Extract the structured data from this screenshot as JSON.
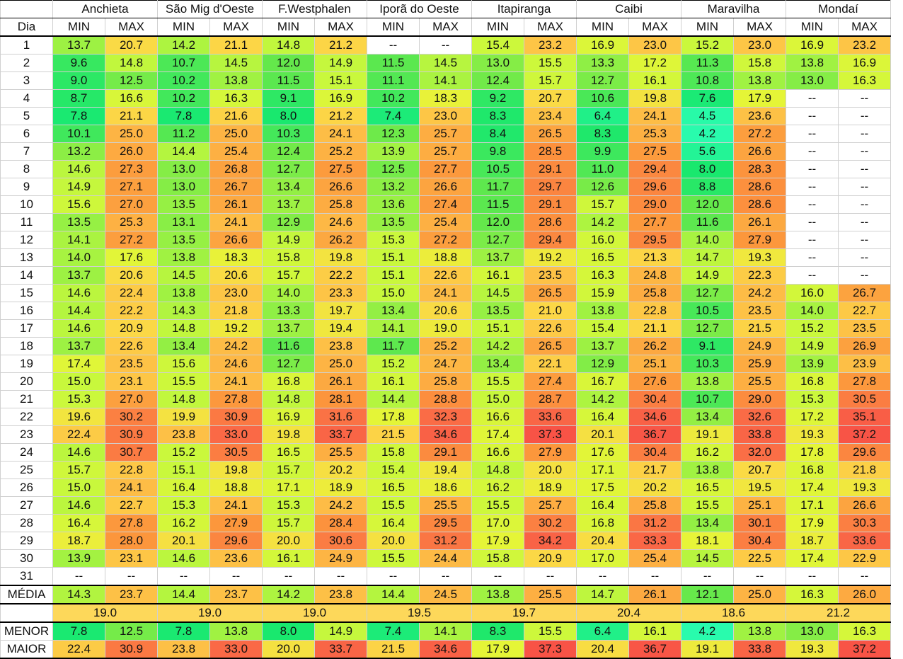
{
  "header": {
    "dia_label": "Dia",
    "min_label": "MIN",
    "max_label": "MAX"
  },
  "stations": [
    "Anchieta",
    "São Mig d'Oeste",
    "F.Westphalen",
    "Iporã do Oeste",
    "Itapiranga",
    "Caibi",
    "Maravilha",
    "Mondaí"
  ],
  "rows": [
    {
      "dia": "1",
      "v": [
        "13.7",
        "20.7",
        "14.2",
        "21.1",
        "14.8",
        "21.2",
        "--",
        "--",
        "15.4",
        "23.2",
        "16.9",
        "23.0",
        "15.2",
        "23.0",
        "16.9",
        "23.2"
      ]
    },
    {
      "dia": "2",
      "v": [
        "9.6",
        "14.8",
        "10.7",
        "14.5",
        "12.0",
        "14.9",
        "11.5",
        "14.5",
        "13.0",
        "15.5",
        "13.3",
        "17.2",
        "11.3",
        "15.8",
        "13.8",
        "16.9"
      ]
    },
    {
      "dia": "3",
      "v": [
        "9.0",
        "12.5",
        "10.2",
        "13.8",
        "11.5",
        "15.1",
        "11.1",
        "14.1",
        "12.4",
        "15.7",
        "12.7",
        "16.1",
        "10.8",
        "13.8",
        "13.0",
        "16.3"
      ]
    },
    {
      "dia": "4",
      "v": [
        "8.7",
        "16.6",
        "10.2",
        "16.3",
        "9.1",
        "16.9",
        "10.2",
        "18.3",
        "9.2",
        "20.7",
        "10.6",
        "19.8",
        "7.6",
        "17.9",
        "--",
        "--"
      ]
    },
    {
      "dia": "5",
      "v": [
        "7.8",
        "21.1",
        "7.8",
        "21.6",
        "8.0",
        "21.2",
        "7.4",
        "23.0",
        "8.3",
        "23.4",
        "6.4",
        "24.1",
        "4.5",
        "23.6",
        "--",
        "--"
      ]
    },
    {
      "dia": "6",
      "v": [
        "10.1",
        "25.0",
        "11.2",
        "25.0",
        "10.3",
        "24.1",
        "12.3",
        "25.7",
        "8.4",
        "26.5",
        "8.3",
        "25.3",
        "4.2",
        "27.2",
        "--",
        "--"
      ]
    },
    {
      "dia": "7",
      "v": [
        "13.2",
        "26.0",
        "14.4",
        "25.4",
        "12.4",
        "25.2",
        "13.9",
        "25.7",
        "9.8",
        "28.5",
        "9.9",
        "27.5",
        "5.6",
        "26.6",
        "--",
        "--"
      ]
    },
    {
      "dia": "8",
      "v": [
        "14.6",
        "27.3",
        "13.0",
        "26.8",
        "12.7",
        "27.5",
        "12.5",
        "27.7",
        "10.5",
        "29.1",
        "11.0",
        "29.4",
        "8.0",
        "28.3",
        "--",
        "--"
      ]
    },
    {
      "dia": "9",
      "v": [
        "14.9",
        "27.1",
        "13.0",
        "26.7",
        "13.4",
        "26.6",
        "13.2",
        "26.6",
        "11.7",
        "29.7",
        "12.6",
        "29.6",
        "8.8",
        "28.6",
        "--",
        "--"
      ]
    },
    {
      "dia": "10",
      "v": [
        "15.6",
        "27.0",
        "13.5",
        "26.1",
        "13.7",
        "25.8",
        "13.6",
        "27.4",
        "11.5",
        "29.1",
        "15.7",
        "29.0",
        "12.0",
        "28.6",
        "--",
        "--"
      ]
    },
    {
      "dia": "11",
      "v": [
        "13.5",
        "25.3",
        "13.1",
        "24.1",
        "12.9",
        "24.6",
        "13.5",
        "25.4",
        "12.0",
        "28.6",
        "14.2",
        "27.7",
        "11.6",
        "26.1",
        "--",
        "--"
      ]
    },
    {
      "dia": "12",
      "v": [
        "14.1",
        "27.2",
        "13.5",
        "26.6",
        "14.9",
        "26.2",
        "15.3",
        "27.2",
        "12.7",
        "29.4",
        "16.0",
        "29.5",
        "14.0",
        "27.9",
        "--",
        "--"
      ]
    },
    {
      "dia": "13",
      "v": [
        "14.0",
        "17.6",
        "13.8",
        "18.3",
        "15.8",
        "19.8",
        "15.1",
        "18.8",
        "13.7",
        "19.2",
        "16.5",
        "21.3",
        "14.7",
        "19.3",
        "--",
        "--"
      ]
    },
    {
      "dia": "14",
      "v": [
        "13.7",
        "20.6",
        "14.5",
        "20.6",
        "15.7",
        "22.2",
        "15.1",
        "22.6",
        "16.1",
        "23.5",
        "16.3",
        "24.8",
        "14.9",
        "22.3",
        "--",
        "--"
      ]
    },
    {
      "dia": "15",
      "v": [
        "14.6",
        "22.4",
        "13.8",
        "23.0",
        "14.0",
        "23.3",
        "15.0",
        "24.1",
        "14.5",
        "26.5",
        "15.9",
        "25.8",
        "12.7",
        "24.2",
        "16.0",
        "26.7"
      ]
    },
    {
      "dia": "16",
      "v": [
        "14.4",
        "22.2",
        "14.3",
        "21.8",
        "13.3",
        "19.7",
        "13.4",
        "20.6",
        "13.5",
        "21.0",
        "13.8",
        "22.8",
        "10.5",
        "23.5",
        "14.0",
        "22.7"
      ]
    },
    {
      "dia": "17",
      "v": [
        "14.6",
        "20.9",
        "14.8",
        "19.2",
        "13.7",
        "19.4",
        "14.1",
        "19.0",
        "15.1",
        "22.6",
        "15.4",
        "21.1",
        "12.7",
        "21.5",
        "15.2",
        "23.5"
      ]
    },
    {
      "dia": "18",
      "v": [
        "13.7",
        "22.6",
        "13.4",
        "24.2",
        "11.6",
        "23.8",
        "11.7",
        "25.2",
        "14.2",
        "26.5",
        "13.7",
        "26.2",
        "9.1",
        "24.9",
        "14.9",
        "26.9"
      ]
    },
    {
      "dia": "19",
      "v": [
        "17.4",
        "23.5",
        "15.6",
        "24.6",
        "12.7",
        "25.0",
        "15.2",
        "24.7",
        "13.4",
        "22.1",
        "12.9",
        "25.1",
        "10.3",
        "25.9",
        "13.9",
        "23.9"
      ]
    },
    {
      "dia": "20",
      "v": [
        "15.0",
        "23.1",
        "15.5",
        "24.1",
        "16.8",
        "26.1",
        "16.1",
        "25.8",
        "15.5",
        "27.4",
        "16.7",
        "27.6",
        "13.8",
        "25.5",
        "16.8",
        "27.8"
      ]
    },
    {
      "dia": "21",
      "v": [
        "15.3",
        "27.0",
        "14.8",
        "27.8",
        "14.8",
        "28.1",
        "14.4",
        "28.8",
        "15.0",
        "28.7",
        "14.2",
        "30.4",
        "10.7",
        "29.0",
        "15.3",
        "30.5"
      ]
    },
    {
      "dia": "22",
      "v": [
        "19.6",
        "30.2",
        "19.9",
        "30.9",
        "16.9",
        "31.6",
        "17.8",
        "32.3",
        "16.6",
        "33.6",
        "16.4",
        "34.6",
        "13.4",
        "32.6",
        "17.2",
        "35.1"
      ]
    },
    {
      "dia": "23",
      "v": [
        "22.4",
        "30.9",
        "23.8",
        "33.0",
        "19.8",
        "33.7",
        "21.5",
        "34.6",
        "17.4",
        "37.3",
        "20.1",
        "36.7",
        "19.1",
        "33.8",
        "19.3",
        "37.2"
      ]
    },
    {
      "dia": "24",
      "v": [
        "14.6",
        "30.7",
        "15.2",
        "30.5",
        "16.5",
        "25.5",
        "15.8",
        "29.1",
        "16.6",
        "27.9",
        "17.6",
        "30.4",
        "16.2",
        "32.0",
        "17.8",
        "29.6"
      ]
    },
    {
      "dia": "25",
      "v": [
        "15.7",
        "22.8",
        "15.1",
        "19.8",
        "15.7",
        "20.2",
        "15.4",
        "19.4",
        "14.8",
        "20.0",
        "17.1",
        "21.7",
        "13.8",
        "20.7",
        "16.8",
        "21.8"
      ]
    },
    {
      "dia": "26",
      "v": [
        "15.0",
        "24.1",
        "16.4",
        "18.8",
        "17.1",
        "18.9",
        "16.5",
        "18.6",
        "16.2",
        "18.9",
        "17.5",
        "20.2",
        "16.5",
        "19.5",
        "17.4",
        "19.3"
      ]
    },
    {
      "dia": "27",
      "v": [
        "14.6",
        "22.7",
        "15.3",
        "24.1",
        "15.3",
        "24.2",
        "15.5",
        "25.5",
        "15.5",
        "25.7",
        "16.4",
        "25.8",
        "15.5",
        "25.1",
        "17.1",
        "26.6"
      ]
    },
    {
      "dia": "28",
      "v": [
        "16.4",
        "27.8",
        "16.2",
        "27.9",
        "15.7",
        "28.4",
        "16.4",
        "29.5",
        "17.0",
        "30.2",
        "16.8",
        "31.2",
        "13.4",
        "30.1",
        "17.9",
        "30.3"
      ]
    },
    {
      "dia": "29",
      "v": [
        "18.7",
        "28.0",
        "20.1",
        "29.6",
        "20.0",
        "30.6",
        "20.0",
        "31.2",
        "17.9",
        "34.2",
        "20.4",
        "33.3",
        "18.1",
        "30.4",
        "18.7",
        "33.6"
      ]
    },
    {
      "dia": "30",
      "v": [
        "13.9",
        "23.1",
        "14.6",
        "23.6",
        "16.1",
        "24.9",
        "15.5",
        "24.4",
        "15.8",
        "20.9",
        "17.0",
        "25.4",
        "14.5",
        "22.5",
        "17.4",
        "22.9"
      ]
    },
    {
      "dia": "31",
      "v": [
        "--",
        "--",
        "--",
        "--",
        "--",
        "--",
        "--",
        "--",
        "--",
        "--",
        "--",
        "--",
        "--",
        "--",
        "--",
        "--"
      ]
    }
  ],
  "media": {
    "label": "MÉDIA",
    "v": [
      "14.3",
      "23.7",
      "14.4",
      "23.7",
      "14.2",
      "23.8",
      "14.4",
      "24.5",
      "13.8",
      "25.5",
      "14.7",
      "26.1",
      "12.1",
      "25.0",
      "16.3",
      "26.0"
    ]
  },
  "overall": [
    "19.0",
    "19.0",
    "19.0",
    "19.5",
    "19.7",
    "20.4",
    "18.6",
    "21.2"
  ],
  "menor": {
    "label": "MENOR",
    "v": [
      "7.8",
      "12.5",
      "7.8",
      "13.8",
      "8.0",
      "14.9",
      "7.4",
      "14.1",
      "8.3",
      "15.5",
      "6.4",
      "16.1",
      "4.2",
      "13.8",
      "13.0",
      "16.3"
    ]
  },
  "maior": {
    "label": "MAIOR",
    "v": [
      "22.4",
      "30.9",
      "23.8",
      "33.0",
      "20.0",
      "33.7",
      "21.5",
      "34.6",
      "17.9",
      "37.3",
      "20.4",
      "36.7",
      "19.1",
      "33.8",
      "19.3",
      "37.2"
    ]
  },
  "colors": {
    "overall_fill": "#fdd85a",
    "empty_fill": "#ffffff"
  }
}
